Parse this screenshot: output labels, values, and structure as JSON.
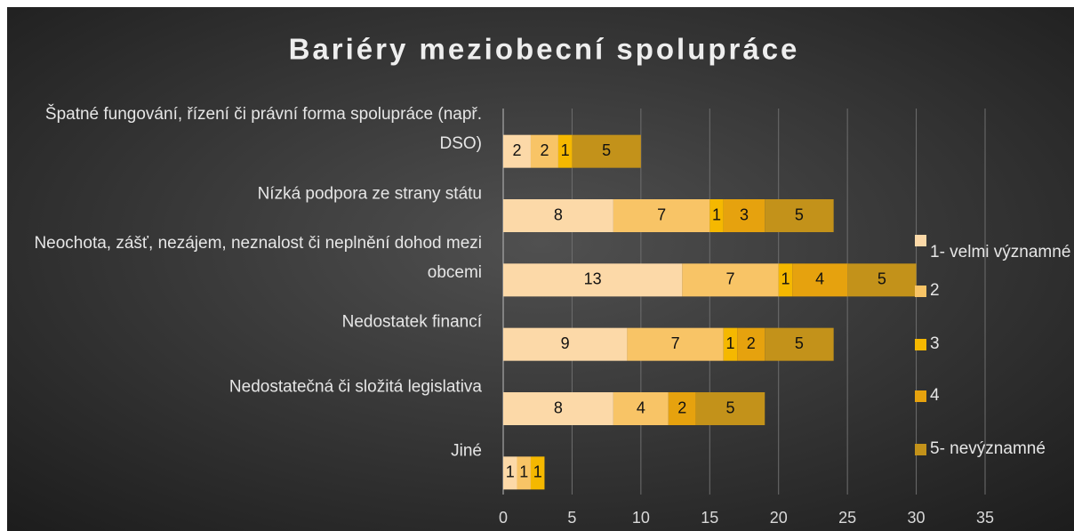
{
  "chart_data": {
    "type": "stacked-bar-horizontal",
    "title": "Bariéry meziobecní spolupráce",
    "categories": [
      "Špatné fungování, řízení či právní forma spolupráce (např. DSO)",
      "Nízká podpora ze strany státu",
      "Neochota, zášť, nezájem, neznalost či neplnění dohod mezi obcemi",
      "Nedostatek financí",
      "Nedostatečná či složitá legislativa",
      "Jiné"
    ],
    "series": [
      {
        "name": "1- velmi významné",
        "color": "#fcd9a8",
        "values": [
          2,
          8,
          13,
          9,
          8,
          1
        ]
      },
      {
        "name": "2",
        "color": "#f8c466",
        "values": [
          2,
          7,
          7,
          7,
          4,
          1
        ]
      },
      {
        "name": "3",
        "color": "#f5b800",
        "values": [
          1,
          1,
          1,
          1,
          null,
          1
        ]
      },
      {
        "name": "4",
        "color": "#e6a20e",
        "values": [
          null,
          3,
          4,
          2,
          2,
          null
        ]
      },
      {
        "name": "5- nevýznamné",
        "color": "#c3921a",
        "values": [
          5,
          5,
          5,
          5,
          5,
          null
        ]
      }
    ],
    "xlim": [
      0,
      35
    ],
    "xticks": [
      0,
      5,
      10,
      15,
      20,
      25,
      30,
      35
    ],
    "grid": true,
    "legend": "right"
  }
}
